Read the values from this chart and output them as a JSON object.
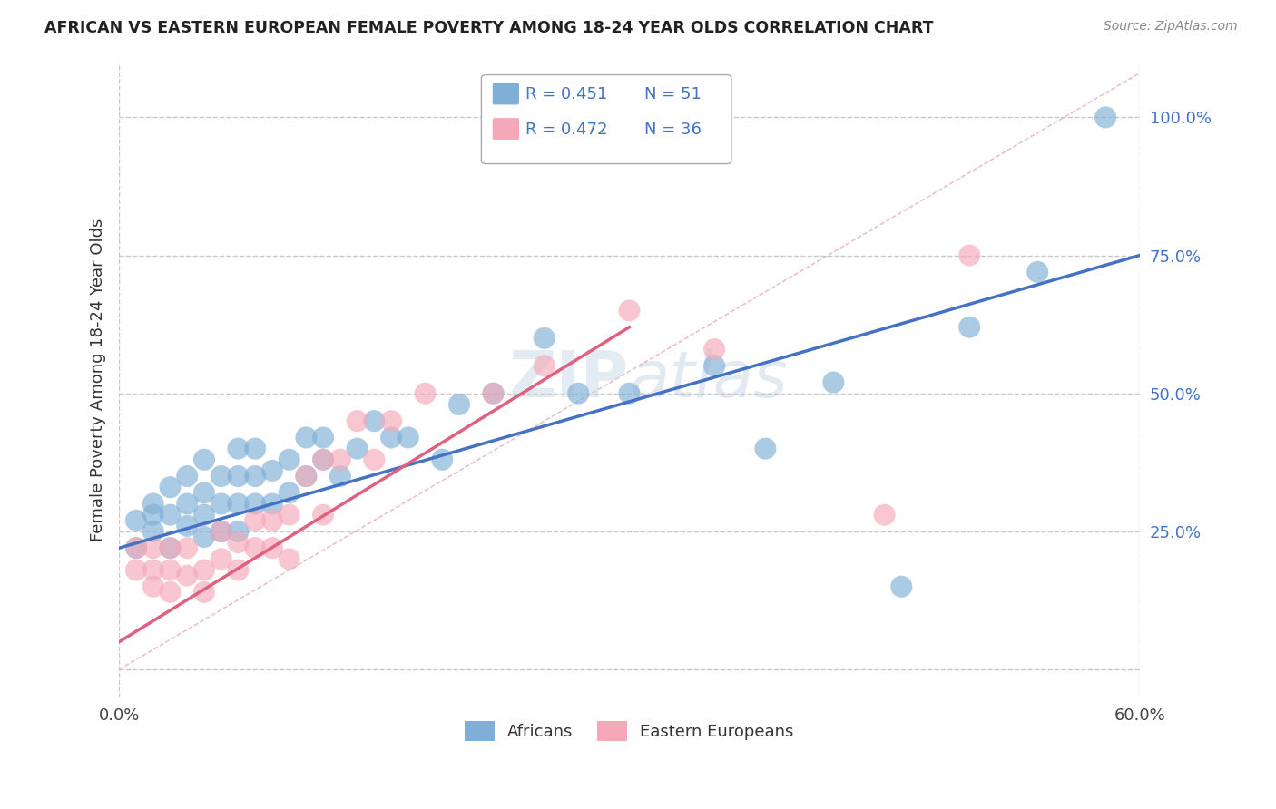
{
  "title": "AFRICAN VS EASTERN EUROPEAN FEMALE POVERTY AMONG 18-24 YEAR OLDS CORRELATION CHART",
  "source": "Source: ZipAtlas.com",
  "ylabel": "Female Poverty Among 18-24 Year Olds",
  "xlim": [
    0.0,
    0.6
  ],
  "ylim": [
    -0.05,
    1.1
  ],
  "ytick_positions": [
    0.0,
    0.25,
    0.5,
    0.75,
    1.0
  ],
  "ytick_labels": [
    "",
    "25.0%",
    "50.0%",
    "75.0%",
    "100.0%"
  ],
  "grid_color": "#c8c8c8",
  "background_color": "#ffffff",
  "africans_color": "#7fafd6",
  "eastern_europeans_color": "#f4a8b8",
  "r_african": 0.451,
  "n_african": 51,
  "r_eastern": 0.472,
  "n_eastern": 36,
  "legend_r_color": "#4472c4",
  "legend_n_color": "#4472c4",
  "watermark": "ZIPatlas",
  "diag_color": "#e8b8c0",
  "blue_line_color": "#4472c4",
  "pink_line_color": "#e06080",
  "africans_x": [
    0.01,
    0.01,
    0.02,
    0.02,
    0.02,
    0.03,
    0.03,
    0.03,
    0.04,
    0.04,
    0.04,
    0.05,
    0.05,
    0.05,
    0.05,
    0.06,
    0.06,
    0.06,
    0.07,
    0.07,
    0.07,
    0.07,
    0.08,
    0.08,
    0.08,
    0.09,
    0.09,
    0.1,
    0.1,
    0.11,
    0.11,
    0.12,
    0.12,
    0.13,
    0.14,
    0.15,
    0.16,
    0.17,
    0.19,
    0.2,
    0.22,
    0.25,
    0.27,
    0.3,
    0.35,
    0.38,
    0.42,
    0.46,
    0.5,
    0.54,
    0.58
  ],
  "africans_y": [
    0.22,
    0.27,
    0.25,
    0.28,
    0.3,
    0.22,
    0.28,
    0.33,
    0.26,
    0.3,
    0.35,
    0.24,
    0.28,
    0.32,
    0.38,
    0.25,
    0.3,
    0.35,
    0.25,
    0.3,
    0.35,
    0.4,
    0.3,
    0.35,
    0.4,
    0.3,
    0.36,
    0.32,
    0.38,
    0.35,
    0.42,
    0.38,
    0.42,
    0.35,
    0.4,
    0.45,
    0.42,
    0.42,
    0.38,
    0.48,
    0.5,
    0.6,
    0.5,
    0.5,
    0.55,
    0.4,
    0.52,
    0.15,
    0.62,
    0.72,
    1.0
  ],
  "eastern_x": [
    0.01,
    0.01,
    0.02,
    0.02,
    0.02,
    0.03,
    0.03,
    0.03,
    0.04,
    0.04,
    0.05,
    0.05,
    0.06,
    0.06,
    0.07,
    0.07,
    0.08,
    0.08,
    0.09,
    0.09,
    0.1,
    0.1,
    0.11,
    0.12,
    0.12,
    0.13,
    0.14,
    0.15,
    0.16,
    0.18,
    0.22,
    0.25,
    0.3,
    0.35,
    0.45,
    0.5
  ],
  "eastern_y": [
    0.18,
    0.22,
    0.15,
    0.18,
    0.22,
    0.14,
    0.18,
    0.22,
    0.17,
    0.22,
    0.18,
    0.14,
    0.2,
    0.25,
    0.18,
    0.23,
    0.22,
    0.27,
    0.22,
    0.27,
    0.2,
    0.28,
    0.35,
    0.28,
    0.38,
    0.38,
    0.45,
    0.38,
    0.45,
    0.5,
    0.5,
    0.55,
    0.65,
    0.58,
    0.28,
    0.75
  ],
  "africans_x_outliers": [
    0.58
  ],
  "africans_y_outliers": [
    1.0
  ]
}
